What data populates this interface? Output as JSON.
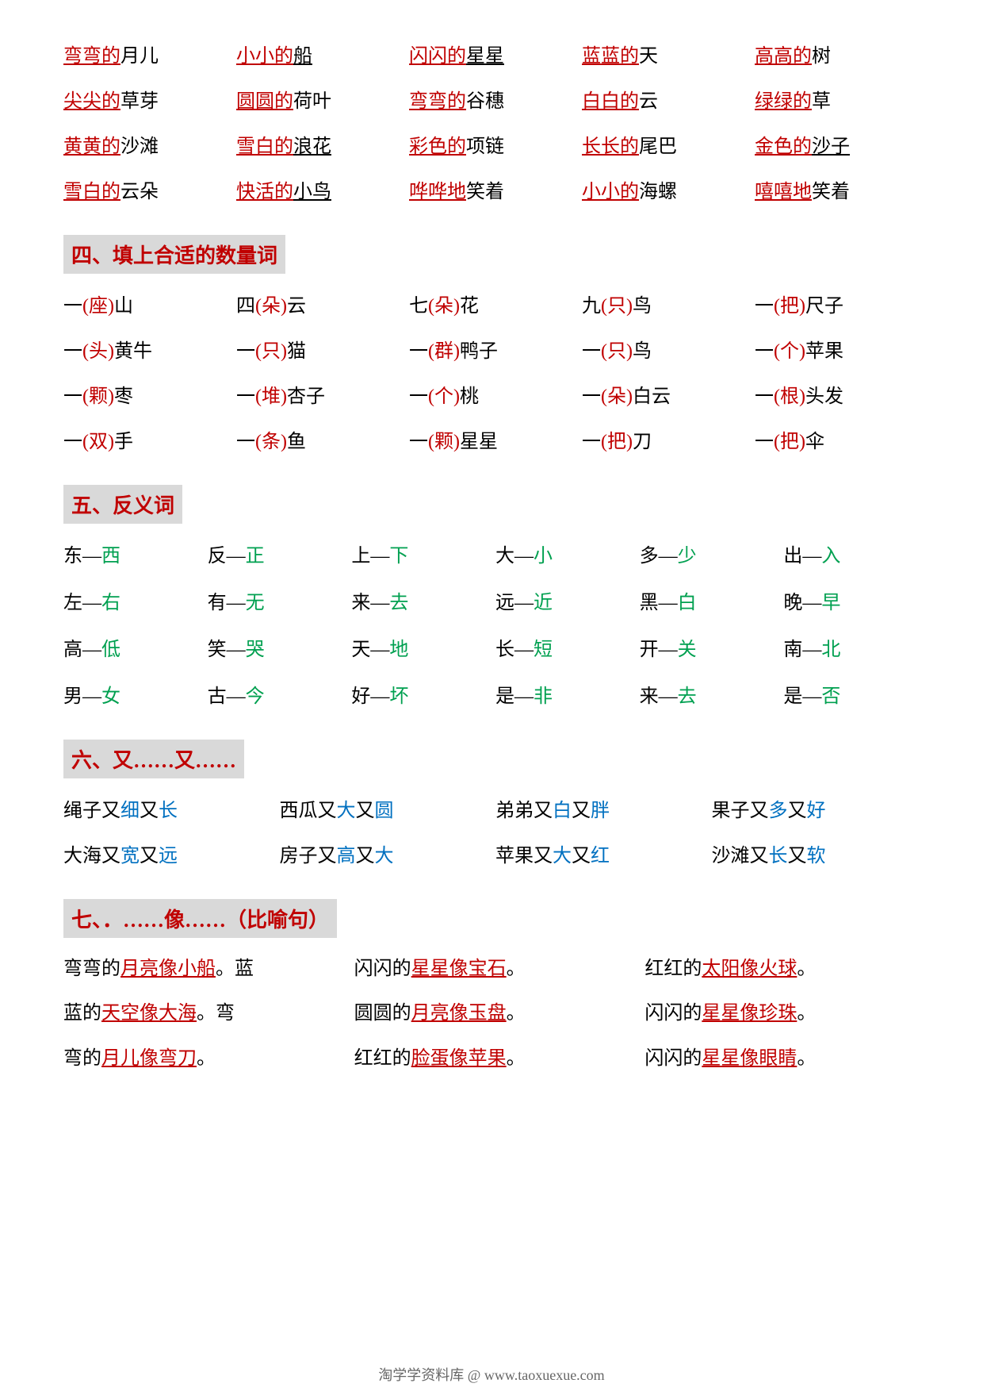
{
  "colors": {
    "red": "#c00000",
    "green": "#00a050",
    "blue": "#0070c0",
    "black": "#000000",
    "header_bg": "#d9d9d9"
  },
  "top_phrases": [
    [
      {
        "t": "弯弯的",
        "c": "red",
        "u": true
      },
      {
        "t": "月儿",
        "c": "black"
      }
    ],
    [
      {
        "t": "小小的",
        "c": "red",
        "u": true
      },
      {
        "t": "船",
        "c": "black",
        "u": true
      }
    ],
    [
      {
        "t": "闪闪的",
        "c": "red",
        "u": true
      },
      {
        "t": "星星",
        "c": "black",
        "u": true
      }
    ],
    [
      {
        "t": "蓝蓝的",
        "c": "red",
        "u": true
      },
      {
        "t": "天",
        "c": "black"
      }
    ],
    [
      {
        "t": "高高的",
        "c": "red",
        "u": true
      },
      {
        "t": "树",
        "c": "black"
      }
    ],
    [
      {
        "t": "尖尖的",
        "c": "red",
        "u": true
      },
      {
        "t": "草芽",
        "c": "black"
      }
    ],
    [
      {
        "t": "圆圆的",
        "c": "red",
        "u": true
      },
      {
        "t": "荷叶",
        "c": "black"
      }
    ],
    [
      {
        "t": "弯弯的",
        "c": "red",
        "u": true
      },
      {
        "t": "谷穗",
        "c": "black"
      }
    ],
    [
      {
        "t": "白白的",
        "c": "red",
        "u": true
      },
      {
        "t": "云",
        "c": "black"
      }
    ],
    [
      {
        "t": "绿绿的",
        "c": "red",
        "u": true
      },
      {
        "t": "草",
        "c": "black"
      }
    ],
    [
      {
        "t": "黄黄的",
        "c": "red",
        "u": true
      },
      {
        "t": "沙滩",
        "c": "black"
      }
    ],
    [
      {
        "t": "雪白的",
        "c": "red",
        "u": true
      },
      {
        "t": "浪花",
        "c": "black",
        "u": true
      }
    ],
    [
      {
        "t": "彩色的",
        "c": "red",
        "u": true
      },
      {
        "t": "项链",
        "c": "black"
      }
    ],
    [
      {
        "t": "长长的",
        "c": "red",
        "u": true
      },
      {
        "t": "尾巴",
        "c": "black"
      }
    ],
    [
      {
        "t": "金色的",
        "c": "red",
        "u": true
      },
      {
        "t": "沙子",
        "c": "black",
        "u": true
      }
    ],
    [
      {
        "t": "雪白的",
        "c": "red",
        "u": true
      },
      {
        "t": "云朵",
        "c": "black"
      }
    ],
    [
      {
        "t": "快活的",
        "c": "red",
        "u": true
      },
      {
        "t": "小鸟",
        "c": "black",
        "u": true
      }
    ],
    [
      {
        "t": "哗哗地",
        "c": "red",
        "u": true
      },
      {
        "t": "笑着",
        "c": "black"
      }
    ],
    [
      {
        "t": "小小的",
        "c": "red",
        "u": true
      },
      {
        "t": "海螺",
        "c": "black"
      }
    ],
    [
      {
        "t": "嘻嘻地",
        "c": "red",
        "u": true
      },
      {
        "t": "笑着",
        "c": "black"
      }
    ]
  ],
  "section4_title": "四、填上合适的数量词",
  "measure_words": [
    {
      "pre": "一",
      "mw": "座",
      "noun": "山"
    },
    {
      "pre": "四",
      "mw": "朵",
      "noun": "云"
    },
    {
      "pre": "七",
      "mw": "朵",
      "noun": "花"
    },
    {
      "pre": "九",
      "mw": "只",
      "noun": "鸟"
    },
    {
      "pre": "一",
      "mw": "把",
      "noun": "尺子"
    },
    {
      "pre": "一",
      "mw": "头",
      "noun": "黄牛"
    },
    {
      "pre": "一",
      "mw": "只",
      "noun": "猫"
    },
    {
      "pre": "一",
      "mw": "群",
      "noun": "鸭子"
    },
    {
      "pre": "一",
      "mw": "只",
      "noun": "鸟"
    },
    {
      "pre": "一",
      "mw": "个",
      "noun": "苹果"
    },
    {
      "pre": "一",
      "mw": "颗",
      "noun": "枣"
    },
    {
      "pre": "一",
      "mw": "堆",
      "noun": "杏子"
    },
    {
      "pre": "一",
      "mw": "个",
      "noun": "桃"
    },
    {
      "pre": "一",
      "mw": "朵",
      "noun": "白云"
    },
    {
      "pre": "一",
      "mw": "根",
      "noun": "头发"
    },
    {
      "pre": "一",
      "mw": "双",
      "noun": "手"
    },
    {
      "pre": "一",
      "mw": "条",
      "noun": "鱼"
    },
    {
      "pre": "一",
      "mw": "颗",
      "noun": "星星"
    },
    {
      "pre": "一",
      "mw": "把",
      "noun": "刀"
    },
    {
      "pre": "一",
      "mw": "把",
      "noun": "伞"
    }
  ],
  "section5_title": "五、反义词",
  "antonyms": [
    {
      "a": "东",
      "b": "西"
    },
    {
      "a": "反",
      "b": "正"
    },
    {
      "a": "上",
      "b": "下"
    },
    {
      "a": "大",
      "b": "小"
    },
    {
      "a": "多",
      "b": "少"
    },
    {
      "a": "出",
      "b": "入"
    },
    {
      "a": "左",
      "b": "右"
    },
    {
      "a": "有",
      "b": "无"
    },
    {
      "a": "来",
      "b": "去"
    },
    {
      "a": "远",
      "b": "近"
    },
    {
      "a": "黑",
      "b": "白"
    },
    {
      "a": "晚",
      "b": "早"
    },
    {
      "a": "高",
      "b": "低"
    },
    {
      "a": "笑",
      "b": "哭"
    },
    {
      "a": "天",
      "b": "地"
    },
    {
      "a": "长",
      "b": "短"
    },
    {
      "a": "开",
      "b": "关"
    },
    {
      "a": "南",
      "b": "北"
    },
    {
      "a": "男",
      "b": "女"
    },
    {
      "a": "古",
      "b": "今"
    },
    {
      "a": "好",
      "b": "坏"
    },
    {
      "a": "是",
      "b": "非"
    },
    {
      "a": "来",
      "b": "去"
    },
    {
      "a": "是",
      "b": "否"
    }
  ],
  "section6_title": "六、又……又……",
  "youyou": [
    [
      {
        "t": "绳子又",
        "c": "black"
      },
      {
        "t": "细",
        "c": "blue"
      },
      {
        "t": "又",
        "c": "black"
      },
      {
        "t": "长",
        "c": "blue"
      }
    ],
    [
      {
        "t": "西瓜又",
        "c": "black"
      },
      {
        "t": "大",
        "c": "blue"
      },
      {
        "t": "又",
        "c": "black"
      },
      {
        "t": "圆",
        "c": "blue"
      }
    ],
    [
      {
        "t": "弟弟又",
        "c": "black"
      },
      {
        "t": "白",
        "c": "blue"
      },
      {
        "t": "又",
        "c": "black"
      },
      {
        "t": "胖",
        "c": "blue"
      }
    ],
    [
      {
        "t": "果子又",
        "c": "black"
      },
      {
        "t": "多",
        "c": "blue"
      },
      {
        "t": "又",
        "c": "black"
      },
      {
        "t": "好",
        "c": "blue"
      }
    ],
    [
      {
        "t": "大海又",
        "c": "black"
      },
      {
        "t": "宽",
        "c": "blue"
      },
      {
        "t": "又",
        "c": "black"
      },
      {
        "t": "远",
        "c": "blue"
      }
    ],
    [
      {
        "t": "房子又",
        "c": "black"
      },
      {
        "t": "高",
        "c": "blue"
      },
      {
        "t": "又",
        "c": "black"
      },
      {
        "t": "大",
        "c": "blue"
      }
    ],
    [
      {
        "t": "苹果又",
        "c": "black"
      },
      {
        "t": "大",
        "c": "blue"
      },
      {
        "t": "又",
        "c": "black"
      },
      {
        "t": "红",
        "c": "blue"
      }
    ],
    [
      {
        "t": "沙滩又",
        "c": "black"
      },
      {
        "t": "长",
        "c": "blue"
      },
      {
        "t": "又",
        "c": "black"
      },
      {
        "t": "软",
        "c": "blue"
      }
    ]
  ],
  "section7_title": "七、．……像……（比喻句）",
  "similes_rows": [
    [
      [
        {
          "t": "弯弯的",
          "c": "black"
        },
        {
          "t": "月亮像小船",
          "c": "red",
          "u": true
        },
        {
          "t": "。蓝",
          "c": "black"
        }
      ],
      [
        {
          "t": "闪闪的",
          "c": "black"
        },
        {
          "t": "星星像宝石",
          "c": "red",
          "u": true
        },
        {
          "t": "。",
          "c": "black"
        }
      ],
      [
        {
          "t": "红红的",
          "c": "black"
        },
        {
          "t": "太阳像火球",
          "c": "red",
          "u": true
        },
        {
          "t": "。",
          "c": "black"
        }
      ]
    ],
    [
      [
        {
          "t": "蓝的",
          "c": "black"
        },
        {
          "t": "天空像大海",
          "c": "red",
          "u": true
        },
        {
          "t": "。弯",
          "c": "black"
        }
      ],
      [
        {
          "t": "圆圆的",
          "c": "black"
        },
        {
          "t": "月亮像玉盘",
          "c": "red",
          "u": true
        },
        {
          "t": "。",
          "c": "black"
        }
      ],
      [
        {
          "t": "闪闪的",
          "c": "black"
        },
        {
          "t": "星星像珍珠",
          "c": "red",
          "u": true
        },
        {
          "t": "。",
          "c": "black"
        }
      ]
    ],
    [
      [
        {
          "t": "弯的",
          "c": "black"
        },
        {
          "t": "月儿像弯刀",
          "c": "red",
          "u": true
        },
        {
          "t": "。",
          "c": "black"
        }
      ],
      [
        {
          "t": "红红的",
          "c": "black"
        },
        {
          "t": "脸蛋像苹果",
          "c": "red",
          "u": true
        },
        {
          "t": "。",
          "c": "black"
        }
      ],
      [
        {
          "t": "闪闪的",
          "c": "black"
        },
        {
          "t": "星星像眼睛",
          "c": "red",
          "u": true
        },
        {
          "t": "。",
          "c": "black"
        }
      ]
    ]
  ],
  "footer": "淘学学资料库 @ www.taoxuexue.com"
}
